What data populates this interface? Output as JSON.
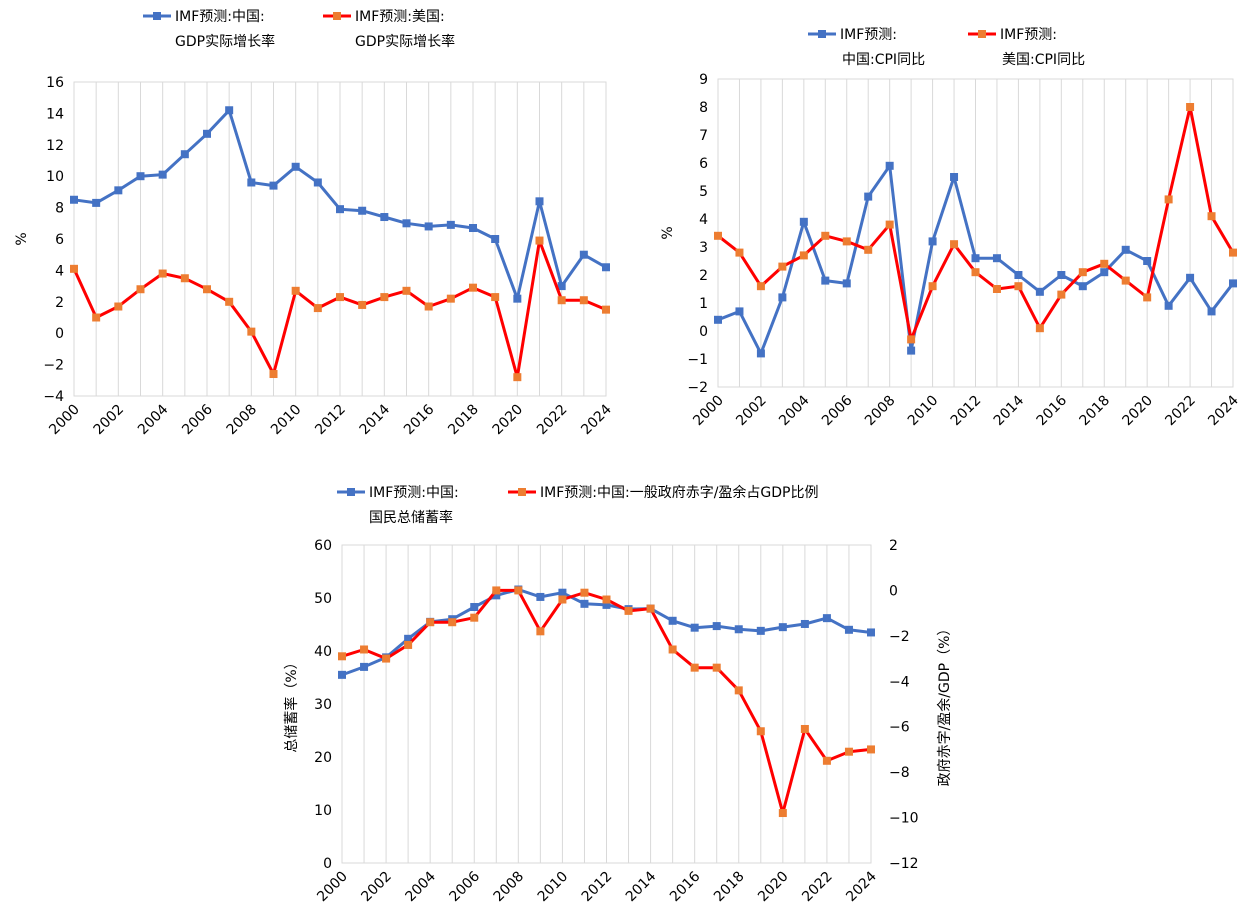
{
  "colors": {
    "blue": "#4472C4",
    "red": "#FF0000",
    "orange_marker": "#ED7D31",
    "grid": "#D9D9D9"
  },
  "chart_data": [
    {
      "type": "line",
      "x": [
        2000,
        2001,
        2002,
        2003,
        2004,
        2005,
        2006,
        2007,
        2008,
        2009,
        2010,
        2011,
        2012,
        2013,
        2014,
        2015,
        2016,
        2017,
        2018,
        2019,
        2020,
        2021,
        2022,
        2023,
        2024
      ],
      "series": [
        {
          "name_line1": "IMF预测:中国:",
          "name_line2": "GDP实际增长率",
          "values": [
            8.5,
            8.3,
            9.1,
            10.0,
            10.1,
            11.4,
            12.7,
            14.2,
            9.6,
            9.4,
            10.6,
            9.6,
            7.9,
            7.8,
            7.4,
            7.0,
            6.8,
            6.9,
            6.7,
            6.0,
            2.2,
            8.4,
            3.0,
            5.0,
            4.2
          ]
        },
        {
          "name_line1": "IMF预测:美国:",
          "name_line2": "GDP实际增长率",
          "values": [
            4.1,
            1.0,
            1.7,
            2.8,
            3.8,
            3.5,
            2.8,
            2.0,
            0.1,
            -2.6,
            2.7,
            1.6,
            2.3,
            1.8,
            2.3,
            2.7,
            1.7,
            2.2,
            2.9,
            2.3,
            -2.8,
            5.9,
            2.1,
            2.1,
            1.5
          ]
        }
      ],
      "ylabel": "%",
      "ylim": [
        -4,
        16
      ],
      "yticks": [
        "−4",
        "−2",
        "0",
        "2",
        "4",
        "6",
        "8",
        "10",
        "12",
        "14",
        "16"
      ],
      "xticks": [
        "2000",
        "2002",
        "2004",
        "2006",
        "2008",
        "2010",
        "2012",
        "2014",
        "2016",
        "2018",
        "2020",
        "2022",
        "2024"
      ]
    },
    {
      "type": "line",
      "x": [
        2000,
        2001,
        2002,
        2003,
        2004,
        2005,
        2006,
        2007,
        2008,
        2009,
        2010,
        2011,
        2012,
        2013,
        2014,
        2015,
        2016,
        2017,
        2018,
        2019,
        2020,
        2021,
        2022,
        2023,
        2024
      ],
      "series": [
        {
          "name_line1": "IMF预测:",
          "name_line2": "中国:CPI同比",
          "values": [
            0.4,
            0.7,
            -0.8,
            1.2,
            3.9,
            1.8,
            1.7,
            4.8,
            5.9,
            -0.7,
            3.2,
            5.5,
            2.6,
            2.6,
            2.0,
            1.4,
            2.0,
            1.6,
            2.1,
            2.9,
            2.5,
            0.9,
            1.9,
            0.7,
            1.7
          ]
        },
        {
          "name_line1": "IMF预测:",
          "name_line2": "美国:CPI同比",
          "values": [
            3.4,
            2.8,
            1.6,
            2.3,
            2.7,
            3.4,
            3.2,
            2.9,
            3.8,
            -0.3,
            1.6,
            3.1,
            2.1,
            1.5,
            1.6,
            0.1,
            1.3,
            2.1,
            2.4,
            1.8,
            1.2,
            4.7,
            8.0,
            4.1,
            2.8
          ]
        }
      ],
      "ylabel": "%",
      "ylim": [
        -2,
        9
      ],
      "yticks": [
        "−2",
        "−1",
        "0",
        "1",
        "2",
        "3",
        "4",
        "5",
        "6",
        "7",
        "8",
        "9"
      ],
      "xticks": [
        "2000",
        "2002",
        "2004",
        "2006",
        "2008",
        "2010",
        "2012",
        "2014",
        "2016",
        "2018",
        "2020",
        "2022",
        "2024"
      ]
    },
    {
      "type": "line",
      "x": [
        2000,
        2001,
        2002,
        2003,
        2004,
        2005,
        2006,
        2007,
        2008,
        2009,
        2010,
        2011,
        2012,
        2013,
        2014,
        2015,
        2016,
        2017,
        2018,
        2019,
        2020,
        2021,
        2022,
        2023,
        2024
      ],
      "series": [
        {
          "name_line1": "IMF预测:中国:",
          "name_line2": "国民总储蓄率",
          "axis": "left",
          "values": [
            35.5,
            37.0,
            38.8,
            42.3,
            45.5,
            46.0,
            48.3,
            50.5,
            51.6,
            50.2,
            51.0,
            48.9,
            48.7,
            47.9,
            48.0,
            45.7,
            44.4,
            44.7,
            44.1,
            43.8,
            44.5,
            45.1,
            46.2,
            44.0,
            43.5
          ]
        },
        {
          "name_line1": "IMF预测:中国:一般政府赤字/盈余占GDP比例",
          "name_line2": "",
          "axis": "right",
          "values": [
            -2.9,
            -2.6,
            -3.0,
            -2.4,
            -1.4,
            -1.4,
            -1.2,
            0.0,
            0.0,
            -1.8,
            -0.4,
            -0.1,
            -0.4,
            -0.9,
            -0.8,
            -2.6,
            -3.4,
            -3.4,
            -4.4,
            -6.2,
            -9.8,
            -6.1,
            -7.5,
            -7.1,
            -7.0
          ]
        }
      ],
      "ylabel_left": "总储蓄率（%）",
      "ylabel_right": "政府赤字/盈余/GDP（%）",
      "ylim_left": [
        0,
        60
      ],
      "ylim_right": [
        -12,
        2
      ],
      "yticks_left": [
        "0",
        "10",
        "20",
        "30",
        "40",
        "50",
        "60"
      ],
      "yticks_right": [
        "−12",
        "−10",
        "−8",
        "−6",
        "−4",
        "−2",
        "0",
        "2"
      ],
      "xticks": [
        "2000",
        "2002",
        "2004",
        "2006",
        "2008",
        "2010",
        "2012",
        "2014",
        "2016",
        "2018",
        "2020",
        "2022",
        "2024"
      ]
    }
  ]
}
